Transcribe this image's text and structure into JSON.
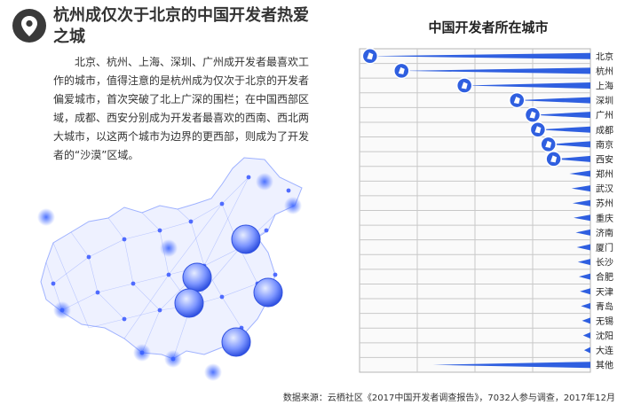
{
  "left_panel": {
    "title": "杭州成仅次于北京的中国开发者热爱之城",
    "paragraph": "北京、杭州、上海、深圳、广州成开发者最喜欢工作的城市，值得注意的是杭州成为仅次于北京的开发者偏爱城市，首次突破了北上广深的围栏；在中国西部区域，成都、西安分别成为开发者最喜欢的西南、西北两大城市，以这两个城市为边界的更西部，则成为了开发者的“沙漠”区域。",
    "icon": "location-pin-icon"
  },
  "colors": {
    "accent": "#2f5fe0",
    "grid": "#c8c8c8",
    "text": "#333333",
    "pin_bg": "#3a3a3a"
  },
  "chart_data": {
    "type": "bar",
    "title": "中国开发者所在城市",
    "orientation": "horizontal",
    "categories": [
      "北京",
      "杭州",
      "上海",
      "深圳",
      "广州",
      "成都",
      "南京",
      "西安",
      "郑州",
      "武汉",
      "苏州",
      "重庆",
      "济南",
      "厦门",
      "长沙",
      "合肥",
      "天津",
      "青岛",
      "无锡",
      "沈阳",
      "大连",
      "其他"
    ],
    "values": [
      21,
      18,
      12,
      7,
      5.5,
      5,
      4,
      3.5,
      2,
      1.8,
      1.7,
      1.6,
      1.4,
      1.3,
      1.2,
      1.1,
      1.0,
      0.9,
      0.8,
      0.7,
      0.6,
      15
    ],
    "xlim": [
      0,
      22
    ],
    "grid": true,
    "markers_on": [
      "北京",
      "杭州",
      "上海",
      "深圳",
      "广州",
      "成都",
      "南京",
      "西安"
    ]
  },
  "footer": {
    "source": "数据来源：云栖社区《2017中国开发者调查报告》，7032人参与调查，2017年12月"
  }
}
